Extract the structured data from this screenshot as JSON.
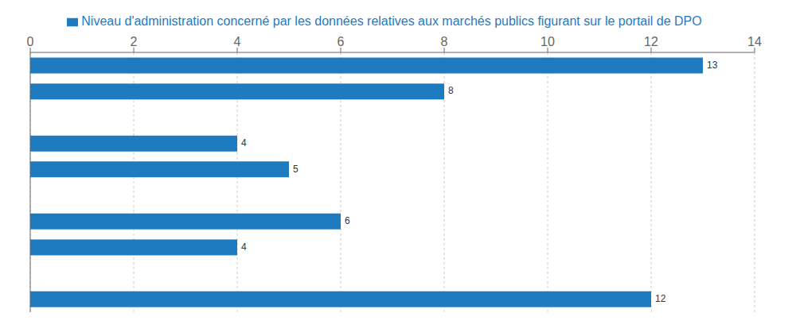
{
  "chart_data": {
    "type": "bar",
    "orientation": "horizontal",
    "categories": [
      null,
      null,
      null,
      null,
      null,
      null,
      null,
      null,
      null,
      null
    ],
    "series": [
      {
        "name": "Niveau d'administration concerné par les données relatives aux marchés publics figurant sur le portail de DPO",
        "color": "#1f7bbf",
        "values": [
          13,
          8,
          0,
          4,
          5,
          0,
          6,
          4,
          0,
          12
        ],
        "value_labels": [
          "13",
          "8",
          null,
          "4",
          "5",
          null,
          "6",
          "4",
          null,
          "12"
        ]
      }
    ],
    "xlim": [
      0,
      14
    ],
    "xticks": [
      0,
      2,
      4,
      6,
      8,
      10,
      12,
      14
    ],
    "grid": true,
    "data_labels": true,
    "tick_labels": "x",
    "legend": "top"
  }
}
